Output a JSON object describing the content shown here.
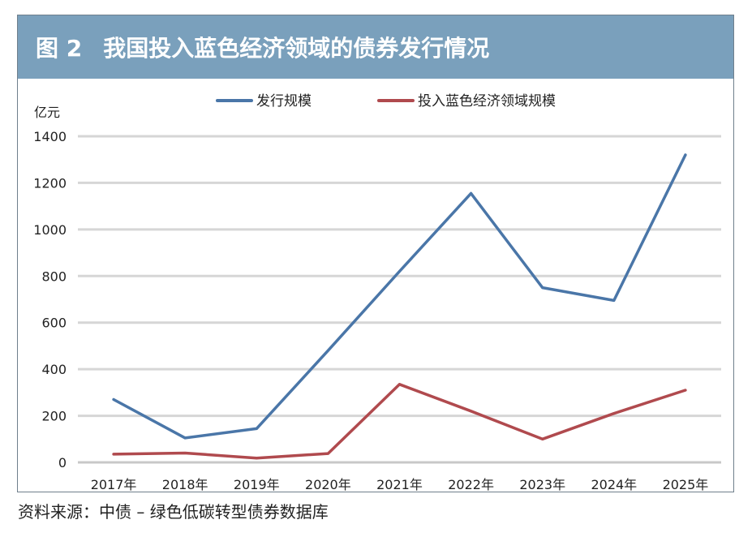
{
  "header": {
    "figure_number": "图 2",
    "title": "我国投入蓝色经济领域的债券发行情况"
  },
  "source": "资料来源：中债 – 绿色低碳转型债券数据库",
  "colors": {
    "title_bar": "#7aa0bc",
    "series_issuance": "#4a76a8",
    "series_blue": "#b04a4e",
    "grid": "#d6d6d6"
  },
  "chart_data": {
    "type": "line",
    "ylabel": "亿元",
    "xlabel": "",
    "ylim": [
      0,
      1400
    ],
    "yticks": [
      "0",
      "200",
      "400",
      "600",
      "800",
      "1000",
      "1200",
      "1400"
    ],
    "categories": [
      "2017年",
      "2018年",
      "2019年",
      "2020年",
      "2021年",
      "2022年",
      "2023年",
      "2024年",
      "2025年"
    ],
    "grid": true,
    "legend_position": "top",
    "series": [
      {
        "name": "发行规模",
        "color": "#4a76a8",
        "values": [
          270,
          105,
          145,
          480,
          820,
          1155,
          750,
          695,
          1320
        ]
      },
      {
        "name": "投入蓝色经济领域规模",
        "color": "#b04a4e",
        "values": [
          35,
          40,
          18,
          38,
          335,
          220,
          100,
          210,
          310
        ]
      }
    ]
  }
}
